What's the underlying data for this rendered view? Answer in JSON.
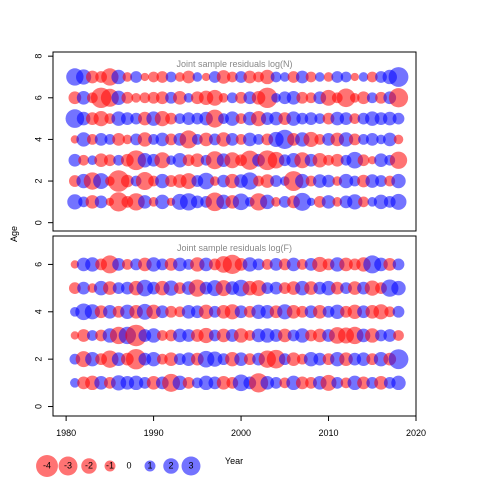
{
  "chart_data": {
    "type": "scatter",
    "subtype": "bubble-residuals",
    "x_label": "Year",
    "y_label": "Age",
    "x_ticks": [
      "1980",
      "1990",
      "2000",
      "2010",
      "2020"
    ],
    "xlim": [
      1978.5,
      2020.0
    ],
    "years_from": 1981,
    "years_to": 2018,
    "colors": {
      "negative": "#FF0000",
      "positive": "#0000FF",
      "opacity": 0.55
    },
    "panels": [
      {
        "title": "Joint sample residuals log(N)",
        "ylim": [
          -0.4,
          8.2
        ],
        "y_ticks": [
          "0",
          "2",
          "4",
          "6",
          "8"
        ],
        "ages": [
          1,
          2,
          3,
          4,
          5,
          6,
          7
        ],
        "residuals": [
          [
            1.0,
            0.5,
            -0.8,
            0.7,
            -0.3,
            -1.6,
            -0.6,
            -1.3,
            0.8,
            -0.4,
            0.9,
            -0.3,
            1.1,
            1.3,
            0.7,
            0.6,
            -1.5,
            0.9,
            -0.8,
            1.2,
            0.4,
            -1.3,
            0.9,
            -0.4,
            0.6,
            -0.7,
            1.4,
            0.3,
            -0.6,
            0.8,
            -0.4,
            0.7,
            1.0,
            -0.5,
            0.4,
            0.9,
            0.6,
            1.1
          ],
          [
            -0.6,
            0.9,
            -1.3,
            1.1,
            -0.4,
            -2.0,
            -0.7,
            0.5,
            -1.4,
            -0.5,
            0.9,
            -0.6,
            -0.8,
            -1.1,
            0.6,
            1.2,
            -0.4,
            0.7,
            -0.9,
            0.8,
            1.3,
            -0.5,
            -0.8,
            0.6,
            0.4,
            -1.7,
            0.9,
            -0.5,
            0.8,
            0.7,
            -0.4,
            0.9,
            0.5,
            -0.7,
            0.8,
            0.6,
            -0.5,
            0.9
          ],
          [
            0.7,
            -0.5,
            0.4,
            -0.8,
            -0.6,
            0.5,
            -0.7,
            -1.7,
            0.9,
            0.7,
            -1.1,
            0.4,
            0.9,
            -0.6,
            -0.8,
            0.5,
            -1.4,
            0.8,
            -1.1,
            -0.6,
            -1.6,
            0.7,
            -1.7,
            -1.2,
            0.6,
            0.9,
            -1.1,
            0.7,
            -0.9,
            -0.5,
            -0.7,
            0.5,
            1.2,
            -0.6,
            -0.3,
            0.8,
            0.5,
            -1.3
          ],
          [
            -0.3,
            0.9,
            -0.5,
            0.7,
            0.5,
            -0.7,
            -0.4,
            0.6,
            -0.9,
            0.5,
            0.8,
            -0.6,
            0.7,
            -1.4,
            0.5,
            -0.8,
            0.6,
            -0.9,
            0.7,
            -0.5,
            0.8,
            0.5,
            -0.6,
            1.0,
            1.6,
            -0.7,
            0.9,
            -1.0,
            -0.5,
            0.7,
            -0.8,
            0.9,
            -0.6,
            0.5,
            0.7,
            0.4,
            0.8,
            -0.4
          ],
          [
            1.5,
            0.8,
            -0.7,
            -1.0,
            -0.5,
            0.9,
            0.7,
            0.6,
            -0.8,
            0.9,
            -1.0,
            -0.6,
            0.5,
            0.7,
            0.6,
            0.8,
            -1.4,
            0.5,
            0.9,
            -0.5,
            0.8,
            -1.0,
            0.7,
            0.8,
            -0.7,
            0.9,
            0.6,
            0.7,
            0.5,
            -0.6,
            0.8,
            0.7,
            -0.5,
            0.6,
            0.9,
            0.7,
            0.8,
            0.6
          ],
          [
            -0.7,
            0.8,
            -0.5,
            -1.8,
            -1.4,
            0.9,
            -0.6,
            -0.4,
            -0.5,
            -0.6,
            -0.7,
            0.6,
            -0.8,
            0.4,
            -0.7,
            -0.9,
            -1.1,
            -0.4,
            0.5,
            -0.6,
            0.7,
            -0.8,
            -1.8,
            0.4,
            0.7,
            0.8,
            -0.6,
            -0.5,
            0.7,
            -1.1,
            -0.5,
            -1.5,
            -0.4,
            -0.7,
            0.5,
            -0.6,
            0.7,
            -1.6
          ],
          [
            1.3,
            1.0,
            -0.7,
            -0.6,
            -1.3,
            0.9,
            -0.4,
            0.6,
            -0.3,
            -0.5,
            -0.6,
            0.5,
            -0.4,
            -0.7,
            0.4,
            -0.3,
            0.6,
            -0.8,
            -0.5,
            0.6,
            -0.7,
            -0.5,
            -0.9,
            0.5,
            0.4,
            -0.6,
            0.7,
            -0.5,
            0.4,
            -0.4,
            0.6,
            0.5,
            -0.3,
            0.4,
            -0.5,
            0.6,
            0.9,
            1.7
          ]
        ]
      },
      {
        "title": "Joint sample residuals log(F)",
        "ylim": [
          -0.4,
          7.2
        ],
        "y_ticks": [
          "0",
          "2",
          "4",
          "6"
        ],
        "ages": [
          1,
          2,
          3,
          4,
          5,
          6
        ],
        "residuals": [
          [
            0.4,
            -0.7,
            -0.9,
            0.8,
            -0.6,
            1.0,
            0.8,
            0.9,
            0.6,
            -0.8,
            0.7,
            -1.4,
            0.9,
            -0.6,
            0.5,
            0.9,
            0.7,
            -0.8,
            -0.6,
            1.2,
            0.7,
            -1.6,
            0.8,
            0.6,
            -0.5,
            0.9,
            -0.7,
            -0.6,
            0.8,
            -1.1,
            0.6,
            -0.5,
            0.9,
            -0.7,
            0.6,
            -0.8,
            0.6,
            0.9
          ],
          [
            0.5,
            -1.1,
            0.9,
            -0.6,
            -1.3,
            0.8,
            -0.7,
            -1.8,
            0.7,
            0.9,
            -0.5,
            -0.8,
            0.6,
            0.8,
            -0.7,
            1.2,
            1.0,
            0.6,
            -0.9,
            0.8,
            -0.6,
            0.7,
            -1.3,
            -1.5,
            0.6,
            -0.8,
            -0.5,
            0.9,
            0.7,
            -0.6,
            0.9,
            -0.8,
            0.7,
            0.8,
            -0.6,
            0.9,
            -0.7,
            1.7
          ],
          [
            -0.3,
            -0.7,
            0.5,
            -0.6,
            0.9,
            -1.3,
            1.3,
            -2.0,
            0.7,
            0.9,
            -0.5,
            -0.6,
            0.8,
            0.7,
            -0.7,
            -1.0,
            0.6,
            -0.8,
            0.7,
            -0.9,
            -0.5,
            0.8,
            0.9,
            0.7,
            -0.8,
            0.6,
            0.9,
            -0.6,
            -0.8,
            0.7,
            -1.2,
            -1.1,
            -1.3,
            0.8,
            -0.9,
            0.6,
            0.7,
            -0.5
          ],
          [
            0.4,
            1.2,
            1.0,
            -0.7,
            0.8,
            -0.6,
            0.9,
            -0.8,
            1.1,
            -0.9,
            0.7,
            -0.6,
            -0.5,
            0.8,
            0.7,
            -0.9,
            0.6,
            -0.8,
            -1.0,
            0.7,
            -0.6,
            0.9,
            0.8,
            -0.7,
            1.0,
            -0.8,
            -0.6,
            0.7,
            -0.8,
            0.6,
            0.9,
            -0.6,
            -0.9,
            0.7,
            -0.8,
            -1.0,
            -0.5,
            0.6
          ],
          [
            -0.6,
            0.7,
            -0.4,
            0.9,
            -0.8,
            0.6,
            0.7,
            -0.9,
            1.2,
            0.7,
            -0.9,
            1.0,
            -0.6,
            0.8,
            -1.3,
            0.7,
            1.1,
            -1.1,
            0.8,
            1.2,
            -0.9,
            -1.1,
            0.6,
            0.7,
            -0.6,
            -0.8,
            0.9,
            -0.8,
            0.7,
            0.9,
            -0.7,
            0.6,
            -0.8,
            0.7,
            -1.0,
            -0.6,
            1.3,
            0.9
          ],
          [
            -0.3,
            0.8,
            0.9,
            -0.6,
            -1.4,
            0.7,
            -0.5,
            0.6,
            -0.8,
            0.9,
            0.6,
            -0.7,
            0.8,
            0.5,
            -0.9,
            0.8,
            -0.6,
            -1.2,
            -1.6,
            -0.7,
            0.9,
            0.6,
            -0.5,
            0.7,
            -0.6,
            0.8,
            -0.5,
            0.7,
            -1.0,
            -0.6,
            0.9,
            -0.8,
            -0.6,
            -0.9,
            1.4,
            0.8,
            -0.7,
            0.6
          ]
        ]
      }
    ],
    "legend": {
      "values": [
        -4,
        -3,
        -2,
        -1,
        0,
        1,
        2,
        3
      ],
      "labels": [
        "-4",
        "-3",
        "-2",
        "-1",
        "0",
        "1",
        "2",
        "3"
      ]
    }
  }
}
